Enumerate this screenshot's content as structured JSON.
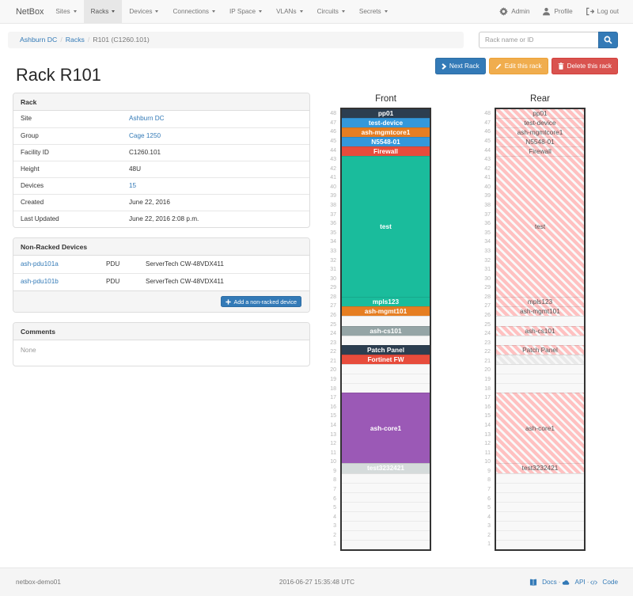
{
  "navbar": {
    "brand": "NetBox",
    "items": [
      {
        "label": "Sites"
      },
      {
        "label": "Racks",
        "active": true
      },
      {
        "label": "Devices"
      },
      {
        "label": "Connections"
      },
      {
        "label": "IP Space"
      },
      {
        "label": "VLANs"
      },
      {
        "label": "Circuits"
      },
      {
        "label": "Secrets"
      }
    ],
    "right": [
      {
        "icon": "gear-icon",
        "label": "Admin"
      },
      {
        "icon": "user-icon",
        "label": "Profile"
      },
      {
        "icon": "log-out-icon",
        "label": "Log out"
      }
    ]
  },
  "breadcrumb": {
    "links": [
      "Ashburn DC",
      "Racks"
    ],
    "current": "R101 (C1260.101)"
  },
  "search": {
    "placeholder": "Rack name or ID",
    "icon": "search-icon"
  },
  "actions": {
    "next": {
      "label": "Next Rack",
      "icon": "chevron-right-icon",
      "style": "primary"
    },
    "edit": {
      "label": "Edit this rack",
      "icon": "pencil-icon",
      "style": "warning"
    },
    "delete": {
      "label": "Delete this rack",
      "icon": "trash-icon",
      "style": "danger"
    }
  },
  "page_title": "Rack R101",
  "rack_panel": {
    "title": "Rack",
    "rows": [
      {
        "label": "Site",
        "value": "Ashburn DC",
        "link": true
      },
      {
        "label": "Group",
        "value": "Cage 1250",
        "link": true
      },
      {
        "label": "Facility ID",
        "value": "C1260.101"
      },
      {
        "label": "Height",
        "value": "48U"
      },
      {
        "label": "Devices",
        "value": "15",
        "link": true
      },
      {
        "label": "Created",
        "value": "June 22, 2016"
      },
      {
        "label": "Last Updated",
        "value": "June 22, 2016 2:08 p.m."
      }
    ]
  },
  "nonracked_panel": {
    "title": "Non-Racked Devices",
    "rows": [
      {
        "name": "ash-pdu101a",
        "role": "PDU",
        "type": "ServerTech CW-48VDX411"
      },
      {
        "name": "ash-pdu101b",
        "role": "PDU",
        "type": "ServerTech CW-48VDX411"
      }
    ],
    "add_button": {
      "label": "Add a non-racked device",
      "icon": "plus-icon"
    }
  },
  "comments_panel": {
    "title": "Comments",
    "body": "None"
  },
  "elevation": {
    "front_title": "Front",
    "rear_title": "Rear",
    "units_total": 48,
    "colors": {
      "navy": "#2c3e50",
      "blue": "#3498db",
      "orange": "#e67e22",
      "red": "#e74c3c",
      "teal": "#1abc9c",
      "gray": "#95a5a6",
      "purple": "#9b59b6",
      "silver": "#d5dbdb",
      "rear_stripe_pink": "#ffc1c1",
      "rear_stripe_gray": "#e9e9e9"
    },
    "devices": [
      {
        "top_u": 48,
        "units": 1,
        "name": "pp01",
        "color": "navy"
      },
      {
        "top_u": 47,
        "units": 1,
        "name": "test-device",
        "color": "blue"
      },
      {
        "top_u": 46,
        "units": 1,
        "name": "ash-mgmtcore1",
        "color": "orange"
      },
      {
        "top_u": 45,
        "units": 1,
        "name": "N5548-01",
        "color": "blue"
      },
      {
        "top_u": 44,
        "units": 1,
        "name": "Firewall",
        "color": "red"
      },
      {
        "top_u": 43,
        "units": 16,
        "name": "test",
        "color": "teal"
      },
      {
        "top_u": 27,
        "units": 1,
        "name": "mpls123",
        "color": "teal"
      },
      {
        "top_u": 26,
        "units": 1,
        "name": "ash-mgmt101",
        "color": "orange"
      },
      {
        "top_u": 24,
        "units": 1,
        "name": "ash-cs101",
        "color": "gray"
      },
      {
        "top_u": 22,
        "units": 1,
        "name": "Patch Panel",
        "color": "navy"
      },
      {
        "top_u": 21,
        "units": 1,
        "name": "Fortinet FW",
        "color": "red",
        "rear_style": "gray-stripe",
        "rear_label": ""
      },
      {
        "top_u": 17,
        "units": 8,
        "name": "ash-core1",
        "color": "purple"
      },
      {
        "top_u": 9,
        "units": 1,
        "name": "test3232421",
        "color": "silver"
      }
    ]
  },
  "footer": {
    "hostname": "netbox-demo01",
    "timestamp": "2016-06-27 15:35:48 UTC",
    "links": [
      {
        "icon": "book-icon",
        "label": "Docs"
      },
      {
        "icon": "cloud-icon",
        "label": "API"
      },
      {
        "icon": "code-icon",
        "label": "Code"
      }
    ]
  }
}
